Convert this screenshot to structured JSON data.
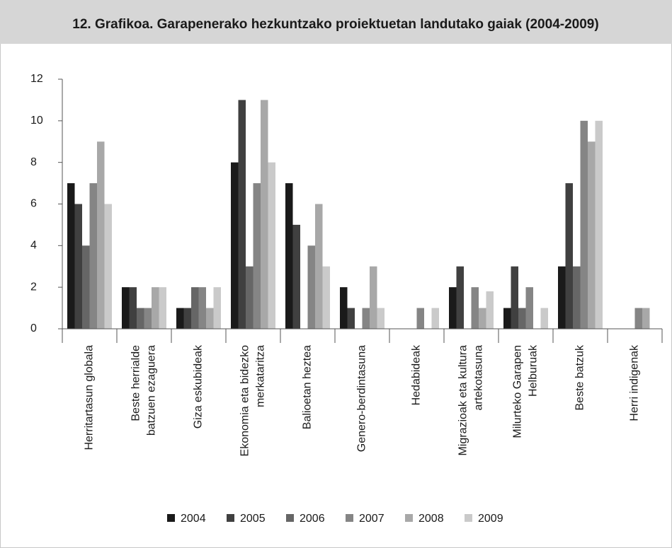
{
  "chart_data": {
    "type": "bar",
    "title": "12. Grafikoa. Garapenerako hezkuntzako proiektuetan landutako gaiak (2004-2009)",
    "categories": [
      "Herritartasun globala",
      "Beste herrialde\nbatzuen ezaguera",
      "Giza eskubideak",
      "Ekonomia eta bidezko\nmerkataritza",
      "Balioetan heztea",
      "Genero-berdintasuna",
      "Hedabideak",
      "Migrazioak eta kultura\nartekotasuna",
      "Milurteko Garapen\nHelburuak",
      "Beste batzuk",
      "Herri indigenak"
    ],
    "series": [
      {
        "name": "2004",
        "color": "#1a1a1a",
        "values": [
          7,
          2,
          1,
          8,
          7,
          2,
          0,
          2,
          1,
          3,
          0
        ]
      },
      {
        "name": "2005",
        "color": "#404040",
        "values": [
          6,
          2,
          1,
          11,
          5,
          1,
          0,
          3,
          3,
          7,
          0
        ]
      },
      {
        "name": "2006",
        "color": "#666666",
        "values": [
          4,
          1,
          2,
          3,
          0,
          0,
          0,
          0,
          1,
          3,
          0
        ]
      },
      {
        "name": "2007",
        "color": "#858585",
        "values": [
          7,
          1,
          2,
          7,
          4,
          1,
          1,
          2,
          2,
          10,
          1
        ]
      },
      {
        "name": "2008",
        "color": "#a8a8a8",
        "values": [
          9,
          2,
          1,
          11,
          6,
          3,
          0,
          1,
          0,
          9,
          1
        ]
      },
      {
        "name": "2009",
        "color": "#cacaca",
        "values": [
          6,
          2,
          2,
          8,
          3,
          1,
          1,
          1.8,
          1,
          10,
          0
        ]
      }
    ],
    "ylim": [
      0,
      12
    ],
    "yticks": [
      0,
      2,
      4,
      6,
      8,
      10,
      12
    ],
    "grid": false,
    "legend": "bottom"
  }
}
